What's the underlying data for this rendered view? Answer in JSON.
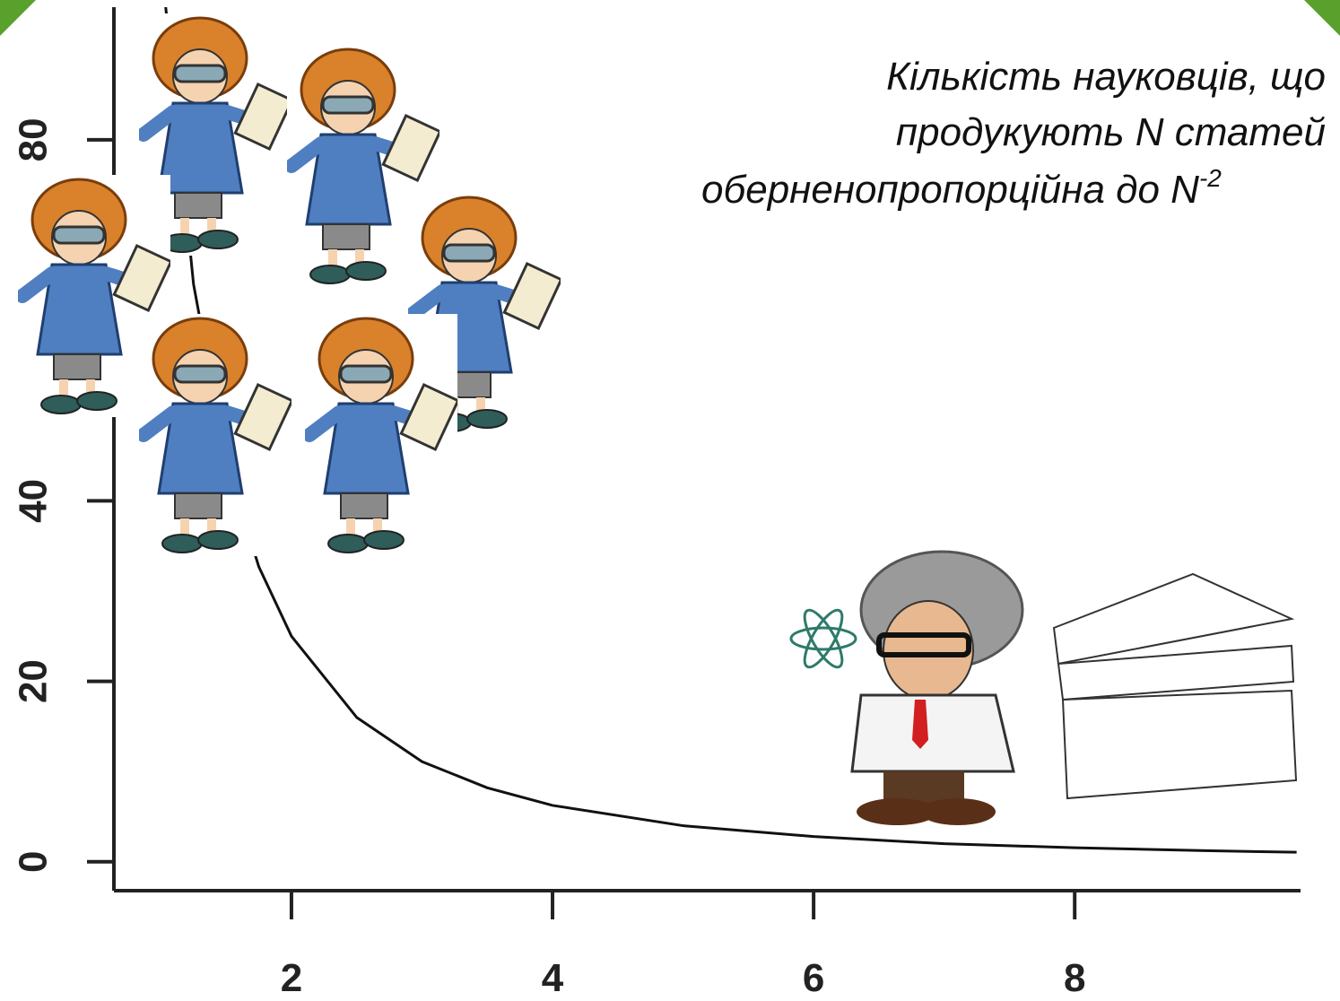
{
  "chart_data": {
    "type": "line",
    "title_lines": [
      "Кількість науковців, що",
      "продукують N статей",
      "обернено­пропорційна до N"
    ],
    "title_superscript": "-2",
    "x": [
      1,
      1.25,
      1.5,
      1.75,
      2,
      2.5,
      3,
      3.5,
      4,
      5,
      6,
      7,
      8,
      9,
      9.7
    ],
    "series": [
      {
        "name": "N^-2",
        "color": "#111111",
        "values": [
          100,
          64,
          44.4,
          32.7,
          25,
          16,
          11.1,
          8.2,
          6.25,
          4,
          2.8,
          2.0,
          1.56,
          1.23,
          1.06
        ]
      }
    ],
    "xlim": [
      0.64,
      9.73
    ],
    "ylim": [
      -3.2,
      94.7
    ],
    "xticks": [
      2,
      4,
      6,
      8
    ],
    "yticks": [
      0,
      20,
      40,
      80
    ]
  }
}
